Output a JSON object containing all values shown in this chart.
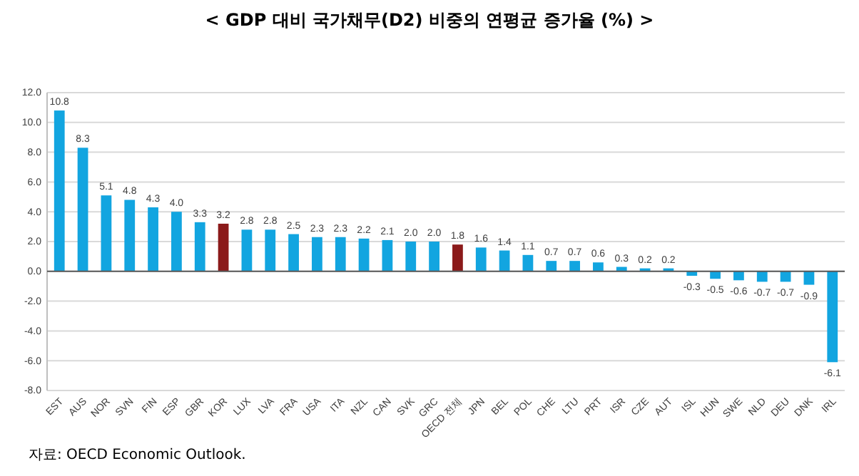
{
  "chart_data": {
    "type": "bar",
    "title": "< GDP 대비 국가채무(D2) 비중의 연평균 증가율 (%) >",
    "categories": [
      "EST",
      "AUS",
      "NOR",
      "SVN",
      "FIN",
      "ESP",
      "GBR",
      "KOR",
      "LUX",
      "LVA",
      "FRA",
      "USA",
      "ITA",
      "NZL",
      "CAN",
      "SVK",
      "GRC",
      "OECD 전체",
      "JPN",
      "BEL",
      "POL",
      "CHE",
      "LTU",
      "PRT",
      "ISR",
      "CZE",
      "AUT",
      "ISL",
      "HUN",
      "SWE",
      "NLD",
      "DEU",
      "DNK",
      "IRL"
    ],
    "values": [
      10.8,
      8.3,
      5.1,
      4.8,
      4.3,
      4.0,
      3.3,
      3.2,
      2.8,
      2.8,
      2.5,
      2.3,
      2.3,
      2.2,
      2.1,
      2.0,
      2.0,
      1.8,
      1.6,
      1.4,
      1.1,
      0.7,
      0.7,
      0.6,
      0.3,
      0.2,
      0.2,
      -0.3,
      -0.5,
      -0.6,
      -0.7,
      -0.7,
      -0.9,
      -6.1
    ],
    "value_labels": [
      "10.8",
      "8.3",
      "5.1",
      "4.8",
      "4.3",
      "4.0",
      "3.3",
      "3.2",
      "2.8",
      "2.8",
      "2.5",
      "2.3",
      "2.3",
      "2.2",
      "2.1",
      "2.0",
      "2.0",
      "1.8",
      "1.6",
      "1.4",
      "1.1",
      "0.7",
      "0.7",
      "0.6",
      "0.3",
      "0.2",
      "0.2",
      "-0.3",
      "-0.5",
      "-0.6",
      "-0.7",
      "-0.7",
      "-0.9",
      "-6.1"
    ],
    "colors": [
      "#12a5e0",
      "#12a5e0",
      "#12a5e0",
      "#12a5e0",
      "#12a5e0",
      "#12a5e0",
      "#12a5e0",
      "#8b1a1a",
      "#12a5e0",
      "#12a5e0",
      "#12a5e0",
      "#12a5e0",
      "#12a5e0",
      "#12a5e0",
      "#12a5e0",
      "#12a5e0",
      "#12a5e0",
      "#8b1a1a",
      "#12a5e0",
      "#12a5e0",
      "#12a5e0",
      "#12a5e0",
      "#12a5e0",
      "#12a5e0",
      "#12a5e0",
      "#12a5e0",
      "#12a5e0",
      "#12a5e0",
      "#12a5e0",
      "#12a5e0",
      "#12a5e0",
      "#12a5e0",
      "#12a5e0",
      "#12a5e0"
    ],
    "ylim": [
      -8,
      12
    ],
    "yticks": [
      {
        "value": -8,
        "label": "-8.0"
      },
      {
        "value": -6,
        "label": "-6.0"
      },
      {
        "value": -4,
        "label": "-4.0"
      },
      {
        "value": -2,
        "label": "-2.0"
      },
      {
        "value": 0,
        "label": "0.0"
      },
      {
        "value": 2,
        "label": "2.0"
      },
      {
        "value": 4,
        "label": "4.0"
      },
      {
        "value": 6,
        "label": "6.0"
      },
      {
        "value": 8,
        "label": "8.0"
      },
      {
        "value": 10,
        "label": "10.0"
      },
      {
        "value": 12,
        "label": "12.0"
      }
    ],
    "grid": "y",
    "annotations": [
      "자료: OECD Economic Outlook."
    ]
  }
}
